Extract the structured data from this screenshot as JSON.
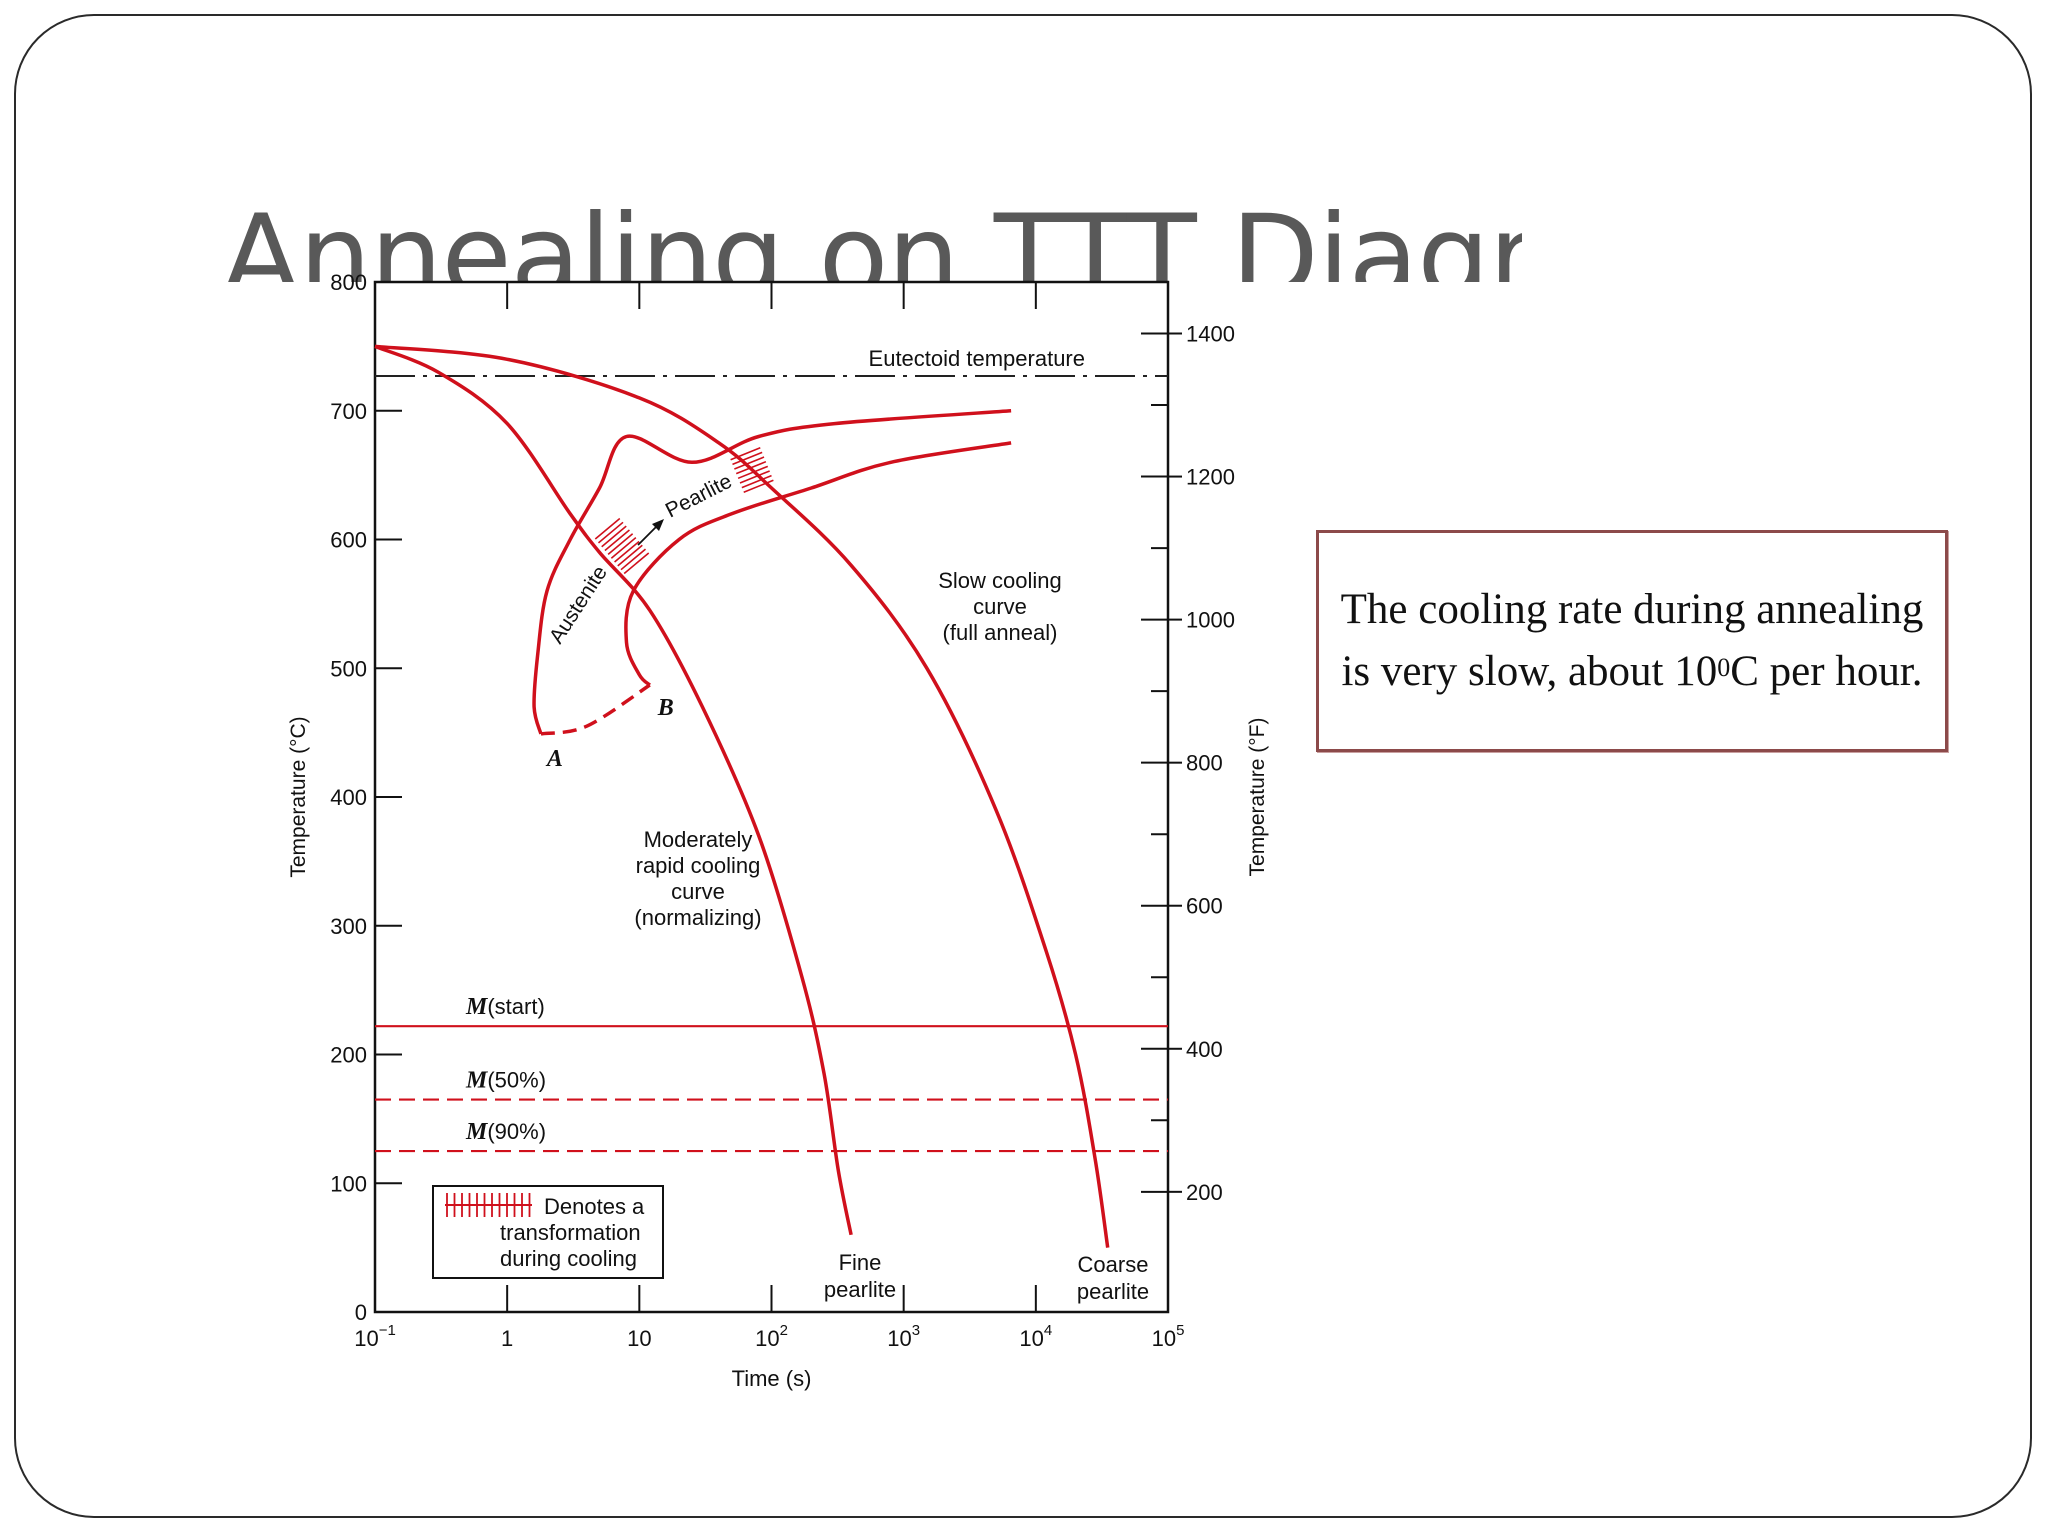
{
  "slide": {
    "title": "Annealing on TTT Diagram",
    "note": {
      "text_before": "The cooling rate during annealing is very slow, about 10",
      "superscript": "0",
      "text_after": "C per hour."
    }
  },
  "colors": {
    "curve": "#d0101c",
    "axis": "#111111",
    "title": "#595959",
    "note_border": "#8c4a4a"
  },
  "chart_data": {
    "type": "line",
    "x_axis": {
      "label": "Time (s)",
      "scale": "log",
      "range_exponents": [
        -1,
        5
      ],
      "ticks": [
        {
          "base": "10",
          "exp": "−1"
        },
        {
          "base": "1",
          "exp": ""
        },
        {
          "base": "10",
          "exp": ""
        },
        {
          "base": "10",
          "exp": "2"
        },
        {
          "base": "10",
          "exp": "3"
        },
        {
          "base": "10",
          "exp": "4"
        },
        {
          "base": "10",
          "exp": "5"
        }
      ]
    },
    "y_axis_left": {
      "label": "Temperature (°C)",
      "range": [
        0,
        800
      ],
      "ticks": [
        0,
        100,
        200,
        300,
        400,
        500,
        600,
        700,
        800
      ]
    },
    "y_axis_right": {
      "label": "Temperature (°F)",
      "ticks": [
        200,
        400,
        600,
        800,
        1000,
        1200,
        1400
      ]
    },
    "eutectoid": {
      "label": "Eutectoid temperature",
      "temp": 727
    },
    "martensite_lines": [
      {
        "label": "M(start)",
        "label_italic": "M",
        "label_rest": "(start)",
        "temp": 222,
        "style": "solid"
      },
      {
        "label": "M(50%)",
        "label_italic": "M",
        "label_rest": "(50%)",
        "temp": 165,
        "style": "dashed"
      },
      {
        "label": "M(90%)",
        "label_italic": "M",
        "label_rest": "(90%)",
        "temp": 125,
        "style": "dashed"
      }
    ],
    "start_curve": [
      [
        12,
        700
      ],
      [
        8,
        680
      ],
      [
        5,
        640
      ],
      [
        3,
        600
      ],
      [
        2,
        560
      ],
      [
        1.7,
        510
      ],
      [
        1.6,
        470
      ],
      [
        1.8,
        449
      ]
    ],
    "finish_curve": [
      [
        6500,
        675
      ],
      [
        800,
        660
      ],
      [
        200,
        640
      ],
      [
        50,
        620
      ],
      [
        20,
        600
      ],
      [
        9,
        560
      ],
      [
        8,
        520
      ],
      [
        10,
        495
      ],
      [
        12,
        487
      ]
    ],
    "start_outer_curve": [
      [
        6500,
        700
      ],
      [
        300,
        690
      ],
      [
        80,
        680
      ],
      [
        25,
        660
      ]
    ],
    "ab_dashed": [
      [
        1.8,
        449
      ],
      [
        4,
        455
      ],
      [
        12,
        487
      ]
    ],
    "points": [
      {
        "label": "A",
        "t": 1.8,
        "temp": 449
      },
      {
        "label": "B",
        "t": 12,
        "temp": 487
      }
    ],
    "cooling_curves": [
      {
        "name": "Moderately rapid cooling curve (normalizing)",
        "label_lines": [
          "Moderately",
          "rapid cooling",
          "curve",
          "(normalizing)"
        ],
        "end_label": [
          "Fine",
          "pearlite"
        ],
        "points": [
          [
            0.1,
            750
          ],
          [
            0.3,
            730
          ],
          [
            1,
            690
          ],
          [
            3,
            620
          ],
          [
            5,
            590
          ],
          [
            12,
            545
          ],
          [
            30,
            470
          ],
          [
            80,
            370
          ],
          [
            170,
            260
          ],
          [
            250,
            185
          ],
          [
            320,
            110
          ],
          [
            400,
            60
          ]
        ]
      },
      {
        "name": "Slow cooling curve (full anneal)",
        "label_lines": [
          "Slow cooling",
          "curve",
          "(full anneal)"
        ],
        "end_label": [
          "Coarse",
          "pearlite"
        ],
        "points": [
          [
            0.1,
            750
          ],
          [
            1,
            740
          ],
          [
            10,
            710
          ],
          [
            40,
            675
          ],
          [
            100,
            640
          ],
          [
            400,
            580
          ],
          [
            1500,
            500
          ],
          [
            5000,
            390
          ],
          [
            12000,
            280
          ],
          [
            20000,
            200
          ],
          [
            28000,
            120
          ],
          [
            35000,
            50
          ]
        ]
      }
    ],
    "region_labels": {
      "austenite": "Austenite",
      "pearlite": "Pearlite"
    },
    "legend": {
      "lines": [
        "Denotes a",
        "transformation",
        "during cooling"
      ]
    }
  }
}
